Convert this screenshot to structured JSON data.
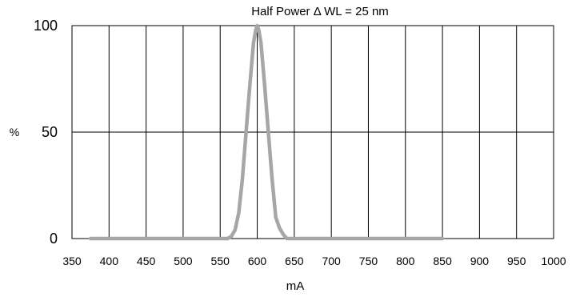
{
  "chart_data": {
    "type": "line",
    "title": "Half Power Δ WL = 25 nm",
    "xlabel": "mA",
    "ylabel": "%",
    "xlim": [
      350,
      1000
    ],
    "ylim": [
      0,
      100
    ],
    "x_ticks": [
      "350",
      "400",
      "450",
      "500",
      "550",
      "600",
      "650",
      "700",
      "750",
      "800",
      "850",
      "900",
      "950",
      "1000"
    ],
    "y_ticks": [
      "0",
      "50",
      "100"
    ],
    "grid": true,
    "series": [
      {
        "color": "#a6a6a6",
        "x": [
          375,
          550,
          560,
          565,
          570,
          575,
          580,
          585,
          590,
          595,
          598,
          600,
          602,
          605,
          610,
          615,
          620,
          625,
          630,
          635,
          640,
          650,
          700,
          800,
          850
        ],
        "y": [
          0,
          0,
          0,
          1,
          4,
          12,
          28,
          50,
          72,
          92,
          98,
          100,
          98,
          92,
          72,
          50,
          28,
          10,
          5,
          2,
          0,
          0,
          0,
          0,
          0
        ]
      }
    ]
  }
}
